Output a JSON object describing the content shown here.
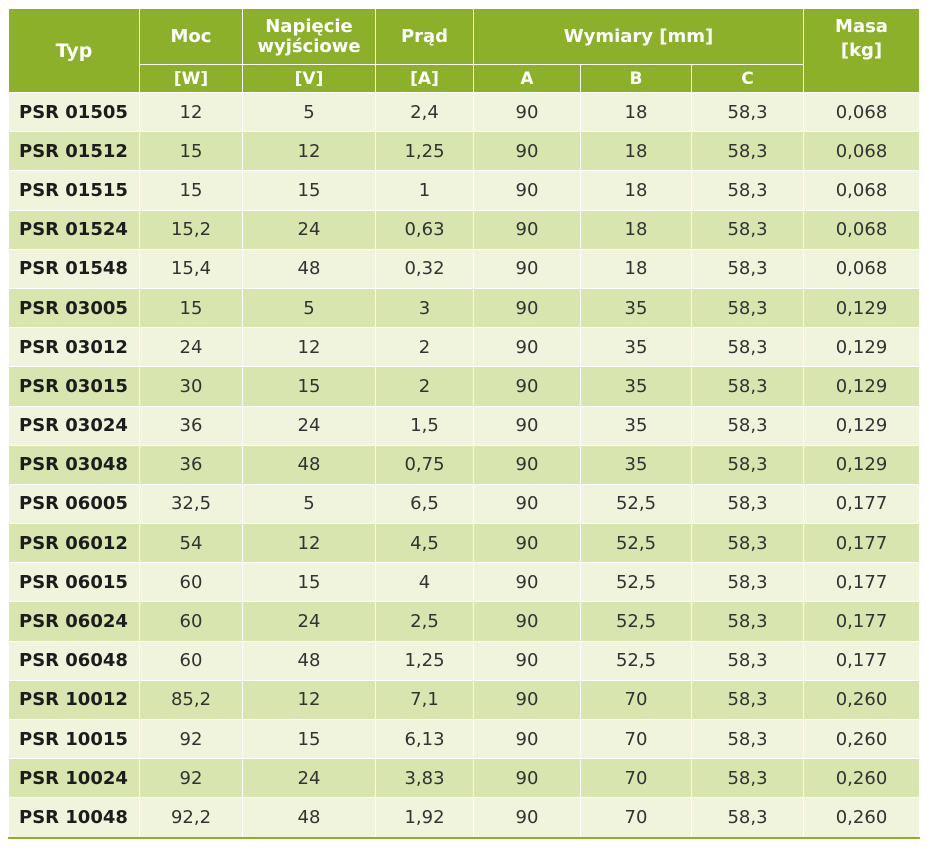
{
  "header": {
    "typ": "Typ",
    "moc": "Moc",
    "napiecie_line1": "Napięcie",
    "napiecie_line2": "wyjściowe",
    "prad": "Prąd",
    "wymiary": "Wymiary [mm]",
    "masa_line1": "Masa",
    "masa_line2": "[kg]",
    "unit_moc": "[W]",
    "unit_nap": "[V]",
    "unit_prad": "[A]",
    "dim_a": "A",
    "dim_b": "B",
    "dim_c": "C"
  },
  "rows": [
    [
      "PSR 01505",
      "12",
      "5",
      "2,4",
      "90",
      "18",
      "58,3",
      "0,068"
    ],
    [
      "PSR 01512",
      "15",
      "12",
      "1,25",
      "90",
      "18",
      "58,3",
      "0,068"
    ],
    [
      "PSR 01515",
      "15",
      "15",
      "1",
      "90",
      "18",
      "58,3",
      "0,068"
    ],
    [
      "PSR 01524",
      "15,2",
      "24",
      "0,63",
      "90",
      "18",
      "58,3",
      "0,068"
    ],
    [
      "PSR 01548",
      "15,4",
      "48",
      "0,32",
      "90",
      "18",
      "58,3",
      "0,068"
    ],
    [
      "PSR 03005",
      "15",
      "5",
      "3",
      "90",
      "35",
      "58,3",
      "0,129"
    ],
    [
      "PSR 03012",
      "24",
      "12",
      "2",
      "90",
      "35",
      "58,3",
      "0,129"
    ],
    [
      "PSR 03015",
      "30",
      "15",
      "2",
      "90",
      "35",
      "58,3",
      "0,129"
    ],
    [
      "PSR 03024",
      "36",
      "24",
      "1,5",
      "90",
      "35",
      "58,3",
      "0,129"
    ],
    [
      "PSR 03048",
      "36",
      "48",
      "0,75",
      "90",
      "35",
      "58,3",
      "0,129"
    ],
    [
      "PSR 06005",
      "32,5",
      "5",
      "6,5",
      "90",
      "52,5",
      "58,3",
      "0,177"
    ],
    [
      "PSR 06012",
      "54",
      "12",
      "4,5",
      "90",
      "52,5",
      "58,3",
      "0,177"
    ],
    [
      "PSR 06015",
      "60",
      "15",
      "4",
      "90",
      "52,5",
      "58,3",
      "0,177"
    ],
    [
      "PSR 06024",
      "60",
      "24",
      "2,5",
      "90",
      "52,5",
      "58,3",
      "0,177"
    ],
    [
      "PSR 06048",
      "60",
      "48",
      "1,25",
      "90",
      "52,5",
      "58,3",
      "0,177"
    ],
    [
      "PSR 10012",
      "85,2",
      "12",
      "7,1",
      "90",
      "70",
      "58,3",
      "0,260"
    ],
    [
      "PSR 10015",
      "92",
      "15",
      "6,13",
      "90",
      "70",
      "58,3",
      "0,260"
    ],
    [
      "PSR 10024",
      "92",
      "24",
      "3,83",
      "90",
      "70",
      "58,3",
      "0,260"
    ],
    [
      "PSR 10048",
      "92,2",
      "48",
      "1,92",
      "90",
      "70",
      "58,3",
      "0,260"
    ]
  ]
}
